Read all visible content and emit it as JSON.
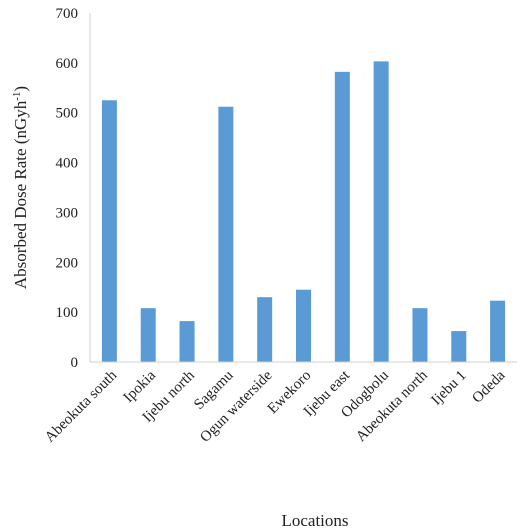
{
  "chart_data": {
    "type": "bar",
    "title": "",
    "xlabel": "Locations",
    "ylabel": "Absorbed Dose Rate (nGyh",
    "ylabel_superscript": "-1",
    "ylabel_close": ")",
    "ylim": [
      0,
      700
    ],
    "yticks": [
      0,
      100,
      200,
      300,
      400,
      500,
      600,
      700
    ],
    "grid": false,
    "bar_color": "#5b9bd5",
    "categories": [
      "Abeokuta south",
      "Ipokia",
      "Ijebu north",
      "Sagamu",
      "Ogun waterside",
      "Ewekoro",
      "Ijebu east",
      "Odogbolu",
      "Abeokuta north",
      "Ijebu 1",
      "Odeda"
    ],
    "values": [
      525,
      108,
      82,
      512,
      130,
      145,
      582,
      603,
      108,
      62,
      123
    ]
  }
}
